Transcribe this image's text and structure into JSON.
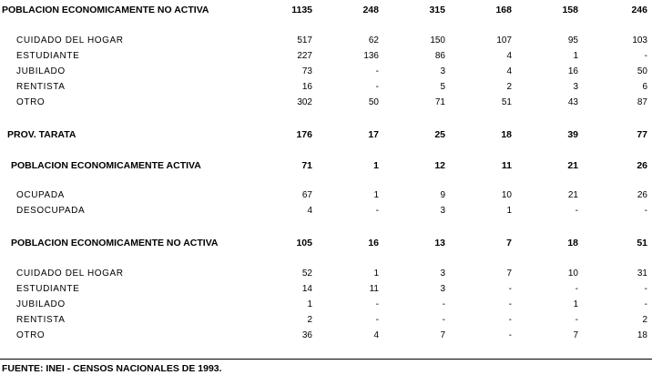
{
  "table": {
    "rows": [
      {
        "label": "POBLACION ECONOMICAMENTE NO ACTIVA",
        "values": [
          1135,
          248,
          315,
          168,
          158,
          246
        ]
      },
      {
        "label": "CUIDADO DEL HOGAR",
        "values": [
          517,
          62,
          150,
          107,
          95,
          103
        ]
      },
      {
        "label": "ESTUDIANTE",
        "values": [
          227,
          136,
          86,
          4,
          1,
          "-"
        ]
      },
      {
        "label": "JUBILADO",
        "values": [
          73,
          "-",
          3,
          4,
          16,
          50
        ]
      },
      {
        "label": "RENTISTA",
        "values": [
          16,
          "-",
          5,
          2,
          3,
          6
        ]
      },
      {
        "label": "OTRO",
        "values": [
          302,
          50,
          71,
          51,
          43,
          87
        ]
      },
      {
        "label": "PROV. TARATA",
        "values": [
          176,
          17,
          25,
          18,
          39,
          77
        ]
      },
      {
        "label": "POBLACION ECONOMICAMENTE ACTIVA",
        "values": [
          71,
          1,
          12,
          11,
          21,
          26
        ]
      },
      {
        "label": "OCUPADA",
        "values": [
          67,
          1,
          9,
          10,
          21,
          26
        ]
      },
      {
        "label": "DESOCUPADA",
        "values": [
          4,
          "-",
          3,
          1,
          "-",
          "-"
        ]
      },
      {
        "label": "POBLACION ECONOMICAMENTE NO ACTIVA",
        "values": [
          105,
          16,
          13,
          7,
          18,
          51
        ]
      },
      {
        "label": "CUIDADO DEL HOGAR",
        "values": [
          52,
          1,
          3,
          7,
          10,
          31
        ]
      },
      {
        "label": "ESTUDIANTE",
        "values": [
          14,
          11,
          3,
          "-",
          "-",
          "-"
        ]
      },
      {
        "label": "JUBILADO",
        "values": [
          1,
          "-",
          "-",
          "-",
          1,
          "-"
        ]
      },
      {
        "label": "RENTISTA",
        "values": [
          2,
          "-",
          "-",
          "-",
          "-",
          2
        ]
      },
      {
        "label": "OTRO",
        "values": [
          36,
          4,
          7,
          "-",
          7,
          18
        ]
      }
    ]
  },
  "footer": {
    "source": "FUENTE: INEI - CENSOS NACIONALES DE 1993."
  }
}
